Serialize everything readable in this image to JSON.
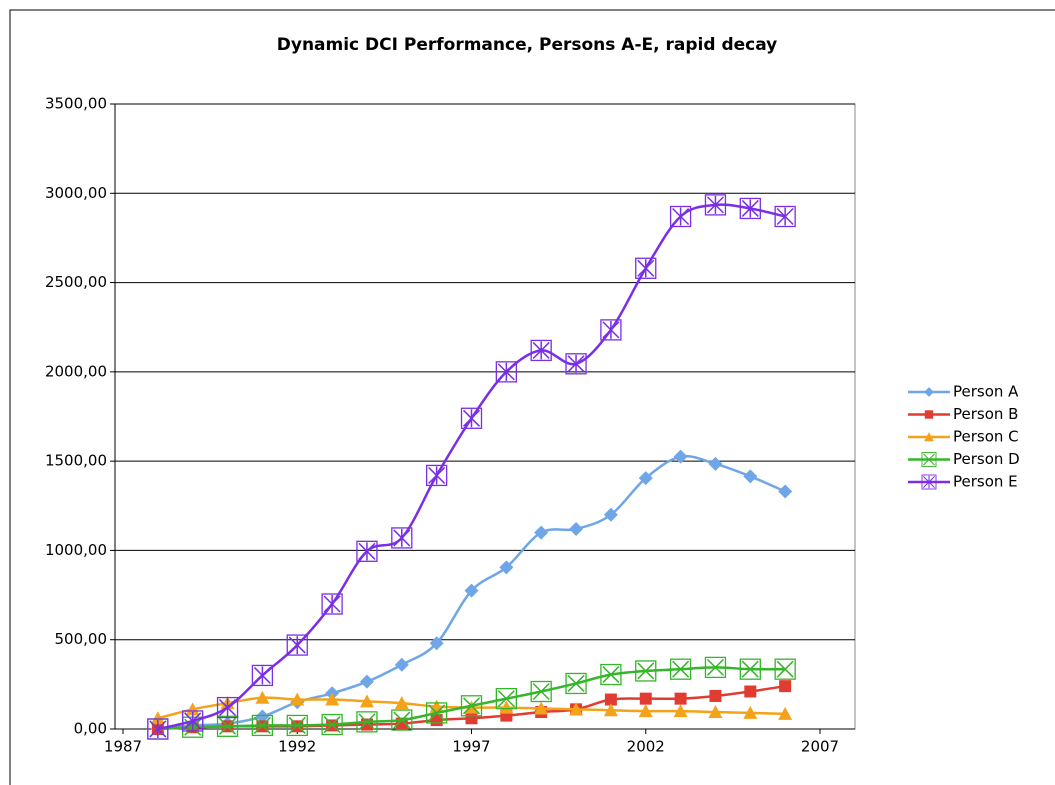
{
  "chart_data": {
    "type": "line",
    "title": "Dynamic DCI Performance, Persons A-E, rapid decay",
    "x": [
      1988,
      1989,
      1990,
      1991,
      1992,
      1993,
      1994,
      1995,
      1996,
      1997,
      1998,
      1999,
      2000,
      2001,
      2002,
      2003,
      2004,
      2005,
      2006
    ],
    "series": [
      {
        "name": "Person A",
        "color": "#6ea6e8",
        "marker": "diamond",
        "values": [
          0,
          20,
          30,
          70,
          150,
          200,
          265,
          360,
          480,
          775,
          905,
          1100,
          1120,
          1200,
          1405,
          1525,
          1485,
          1415,
          1330
        ]
      },
      {
        "name": "Person B",
        "color": "#e03c31",
        "marker": "square",
        "values": [
          0,
          10,
          15,
          15,
          15,
          20,
          25,
          30,
          50,
          60,
          75,
          95,
          110,
          165,
          170,
          170,
          185,
          210,
          240
        ]
      },
      {
        "name": "Person C",
        "color": "#f5a21b",
        "marker": "triangle",
        "values": [
          60,
          110,
          145,
          175,
          165,
          165,
          155,
          145,
          125,
          120,
          120,
          115,
          110,
          105,
          100,
          100,
          95,
          90,
          85
        ]
      },
      {
        "name": "Person D",
        "color": "#35b52a",
        "marker": "box-x",
        "values": [
          0,
          10,
          15,
          20,
          20,
          25,
          40,
          50,
          90,
          130,
          170,
          210,
          255,
          305,
          325,
          335,
          345,
          335,
          335
        ]
      },
      {
        "name": "Person E",
        "color": "#7a2ee6",
        "marker": "box-star",
        "values": [
          0,
          45,
          120,
          300,
          470,
          700,
          995,
          1070,
          1420,
          1740,
          2000,
          2120,
          2045,
          2235,
          2580,
          2870,
          2935,
          2915,
          2870
        ]
      }
    ],
    "xlim": [
      1987,
      2007
    ],
    "xticks": [
      1987,
      1992,
      1997,
      2002,
      2007
    ],
    "ylim": [
      0,
      3500
    ],
    "yticks": [
      {
        "value": 0,
        "label": "0,00"
      },
      {
        "value": 500,
        "label": "500,00"
      },
      {
        "value": 1000,
        "label": "1000,00"
      },
      {
        "value": 1500,
        "label": "1500,00"
      },
      {
        "value": 2000,
        "label": "2000,00"
      },
      {
        "value": 2500,
        "label": "2500,00"
      },
      {
        "value": 3000,
        "label": "3000,00"
      },
      {
        "value": 3500,
        "label": "3500,00"
      }
    ],
    "grid": true,
    "smooth": true,
    "legend": "right"
  }
}
